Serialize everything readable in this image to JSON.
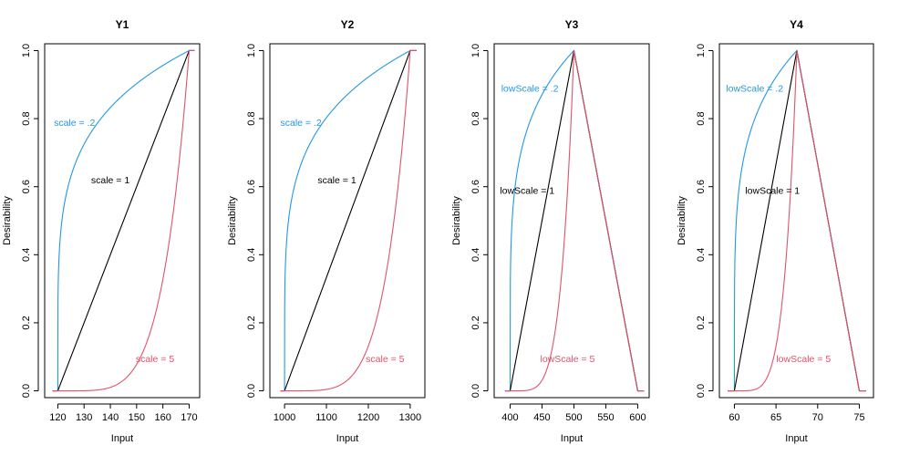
{
  "chart_data": [
    {
      "type": "line",
      "title": "Y1",
      "xlabel": "Input",
      "ylabel": "Desirability",
      "xlim": [
        115,
        174
      ],
      "ylim": [
        -0.02,
        1.02
      ],
      "xticks": [
        120,
        130,
        140,
        150,
        160,
        170
      ],
      "yticks": [
        0.0,
        0.2,
        0.4,
        0.6,
        0.8,
        1.0
      ],
      "ytick_labels": [
        "0.0",
        "0.2",
        "0.4",
        "0.6",
        "0.8",
        "1.0"
      ],
      "grid": false,
      "curve": {
        "kind": "max",
        "low": 120,
        "high": 170,
        "xmin": 118,
        "xmax": 172
      },
      "series": [
        {
          "label": "scale = .2",
          "scale": 0.2,
          "color": "#2297E6",
          "label_x": 118.5,
          "label_y": 0.79,
          "anchor": "start"
        },
        {
          "label": "scale = 1",
          "scale": 1,
          "color": "#000000",
          "label_x": 140,
          "label_y": 0.62,
          "anchor": "middle"
        },
        {
          "label": "scale = 5",
          "scale": 5,
          "color": "#DF536B",
          "label_x": 157,
          "label_y": 0.095,
          "anchor": "middle"
        }
      ]
    },
    {
      "type": "line",
      "title": "Y2",
      "xlabel": "Input",
      "ylabel": "Desirability",
      "xlim": [
        965,
        1335
      ],
      "ylim": [
        -0.02,
        1.02
      ],
      "xticks": [
        1000,
        1100,
        1200,
        1300
      ],
      "yticks": [
        0.0,
        0.2,
        0.4,
        0.6,
        0.8,
        1.0
      ],
      "ytick_labels": [
        "0.0",
        "0.2",
        "0.4",
        "0.6",
        "0.8",
        "1.0"
      ],
      "grid": false,
      "curve": {
        "kind": "max",
        "low": 1000,
        "high": 1300,
        "xmin": 990,
        "xmax": 1315
      },
      "series": [
        {
          "label": "scale = .2",
          "scale": 0.2,
          "color": "#2297E6",
          "label_x": 990,
          "label_y": 0.79,
          "anchor": "start"
        },
        {
          "label": "scale = 1",
          "scale": 1,
          "color": "#000000",
          "label_x": 1125,
          "label_y": 0.62,
          "anchor": "middle"
        },
        {
          "label": "scale = 5",
          "scale": 5,
          "color": "#DF536B",
          "label_x": 1240,
          "label_y": 0.095,
          "anchor": "middle"
        }
      ]
    },
    {
      "type": "line",
      "title": "Y3",
      "xlabel": "Input",
      "ylabel": "Desirability",
      "xlim": [
        375,
        618
      ],
      "ylim": [
        -0.02,
        1.02
      ],
      "xticks": [
        400,
        450,
        500,
        550,
        600
      ],
      "yticks": [
        0.0,
        0.2,
        0.4,
        0.6,
        0.8,
        1.0
      ],
      "ytick_labels": [
        "0.0",
        "0.2",
        "0.4",
        "0.6",
        "0.8",
        "1.0"
      ],
      "grid": false,
      "curve": {
        "kind": "target",
        "low": 400,
        "target": 500,
        "high": 600,
        "xmin": 392,
        "xmax": 610
      },
      "series": [
        {
          "label": "lowScale = .2",
          "scale": 0.2,
          "color": "#2297E6",
          "label_x": 386,
          "label_y": 0.89,
          "anchor": "start"
        },
        {
          "label": "lowScale = 1",
          "scale": 1,
          "color": "#000000",
          "label_x": 384,
          "label_y": 0.59,
          "anchor": "start"
        },
        {
          "label": "lowScale = 5",
          "scale": 5,
          "color": "#DF536B",
          "label_x": 490,
          "label_y": 0.095,
          "anchor": "middle"
        }
      ]
    },
    {
      "type": "line",
      "title": "Y4",
      "xlabel": "Input",
      "ylabel": "Desirability",
      "xlim": [
        58.2,
        76.7
      ],
      "ylim": [
        -0.02,
        1.02
      ],
      "xticks": [
        60,
        65,
        70,
        75
      ],
      "yticks": [
        0.0,
        0.2,
        0.4,
        0.6,
        0.8,
        1.0
      ],
      "ytick_labels": [
        "0.0",
        "0.2",
        "0.4",
        "0.6",
        "0.8",
        "1.0"
      ],
      "grid": false,
      "curve": {
        "kind": "target",
        "low": 60,
        "target": 67.5,
        "high": 75,
        "xmin": 59.2,
        "xmax": 75.8
      },
      "series": [
        {
          "label": "lowScale = .2",
          "scale": 0.2,
          "color": "#2297E6",
          "label_x": 59,
          "label_y": 0.89,
          "anchor": "start"
        },
        {
          "label": "lowScale = 1",
          "scale": 1,
          "color": "#000000",
          "label_x": 61.3,
          "label_y": 0.59,
          "anchor": "start"
        },
        {
          "label": "lowScale = 5",
          "scale": 5,
          "color": "#DF536B",
          "label_x": 68.3,
          "label_y": 0.095,
          "anchor": "middle"
        }
      ]
    }
  ]
}
